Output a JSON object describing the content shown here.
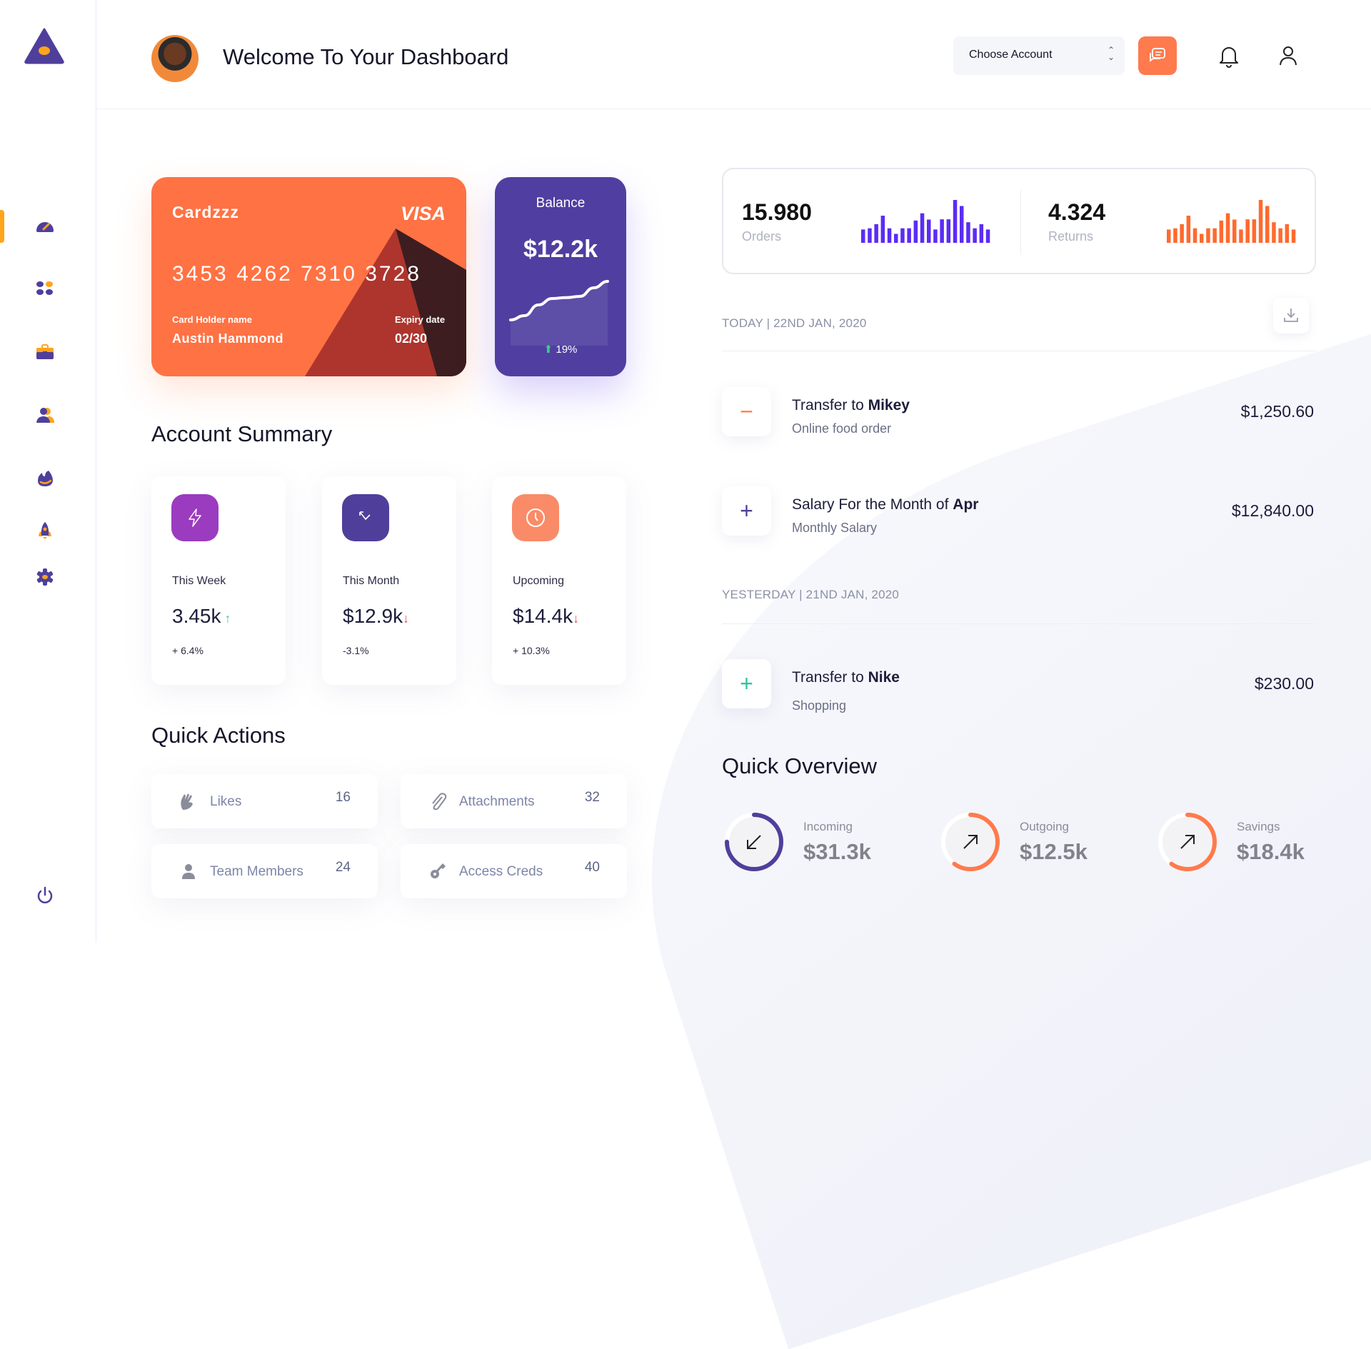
{
  "header": {
    "title": "Welcome To Your Dashboard",
    "account_select": {
      "value": "Choose Account"
    }
  },
  "sidebar": {
    "items": [
      {
        "icon": "speedometer-icon",
        "active": true
      },
      {
        "icon": "apps-grid-icon"
      },
      {
        "icon": "briefcase-icon"
      },
      {
        "icon": "users-icon"
      },
      {
        "icon": "fire-icon"
      },
      {
        "icon": "rocket-icon"
      },
      {
        "icon": "gear-icon"
      }
    ],
    "logout_icon": "power-icon"
  },
  "card": {
    "brand": "Cardzzz",
    "network": "VISA",
    "number": "3453 4262 7310 3728",
    "holder_label": "Card Holder name",
    "holder": "Austin Hammond",
    "expiry_label": "Expiry date",
    "expiry": "02/30"
  },
  "balance": {
    "label": "Balance",
    "value": "$12.2k",
    "change": "19%",
    "trend": [
      0.1,
      0.2,
      0.45,
      0.6,
      0.62,
      0.65,
      0.85,
      1.0
    ]
  },
  "account_summary": {
    "title": "Account Summary",
    "cards": [
      {
        "label": "This Week",
        "value": "3.45k",
        "change": "+ 6.4%",
        "direction": "up",
        "color": "#9b3bbf",
        "icon": "lightning-icon"
      },
      {
        "label": "This Month",
        "value": "$12.9k",
        "change": "-3.1%",
        "direction": "down",
        "color": "#4f3f9b",
        "icon": "arrow-up-left-down-icon"
      },
      {
        "label": "Upcoming",
        "value": "$14.4k",
        "change": "+ 10.3%",
        "direction": "down",
        "color": "#f98b68",
        "icon": "clock-icon"
      }
    ]
  },
  "quick_actions": {
    "title": "Quick Actions",
    "items": [
      {
        "label": "Likes",
        "count": "16",
        "icon": "clap-hands-icon"
      },
      {
        "label": "Attachments",
        "count": "32",
        "icon": "paperclip-icon"
      },
      {
        "label": "Team Members",
        "count": "24",
        "icon": "person-icon"
      },
      {
        "label": "Access Creds",
        "count": "40",
        "icon": "key-icon"
      }
    ]
  },
  "stats": {
    "orders": {
      "value": "15.980",
      "label": "Orders",
      "color": "#5b2cf5",
      "bars": [
        55,
        60,
        77,
        112,
        60,
        37,
        60,
        60,
        92,
        122,
        96,
        55,
        97,
        97,
        177,
        152,
        85,
        60,
        77,
        55
      ]
    },
    "returns": {
      "value": "4.324",
      "label": "Returns",
      "color": "#ff6a2e",
      "bars": [
        55,
        60,
        77,
        112,
        60,
        37,
        60,
        60,
        92,
        122,
        96,
        55,
        97,
        97,
        177,
        152,
        85,
        60,
        77,
        55
      ]
    }
  },
  "transactions": {
    "today_label": "TODAY | 22ND JAN, 2020",
    "yesterday_label": "YESTERDAY | 21ND JAN, 2020",
    "items": [
      {
        "title_prefix": "Transfer to ",
        "title_bold": "Mikey",
        "subtitle": "Online food order",
        "amount": "$1,250.60",
        "sign": "−",
        "color": "#ff7a4d"
      },
      {
        "title_prefix": "Salary For the Month of ",
        "title_bold": "Apr",
        "subtitle": "Monthly Salary",
        "amount": "$12,840.00",
        "sign": "+",
        "color": "#4f3f9b"
      },
      {
        "title_prefix": "Transfer to ",
        "title_bold": "Nike",
        "subtitle": "Shopping",
        "amount": "$230.00",
        "sign": "+",
        "color": "#2ec4a0"
      }
    ]
  },
  "quick_overview": {
    "title": "Quick Overview",
    "items": [
      {
        "label": "Incoming",
        "value": "$31.3k",
        "progress": 0.75,
        "color": "#4f3f9b",
        "icon": "arrow-down-left-icon"
      },
      {
        "label": "Outgoing",
        "value": "$12.5k",
        "progress": 0.6,
        "color": "#ff7a4d",
        "icon": "arrow-up-right-icon"
      },
      {
        "label": "Savings",
        "value": "$18.4k",
        "progress": 0.6,
        "color": "#ff7a4d",
        "icon": "arrow-up-right-icon"
      }
    ]
  }
}
